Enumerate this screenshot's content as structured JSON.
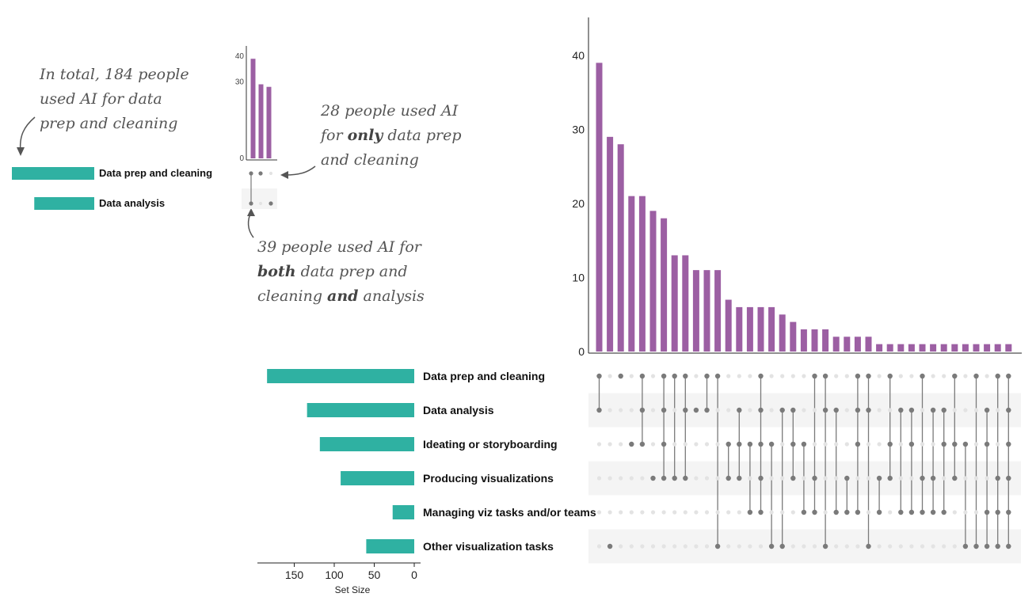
{
  "colors": {
    "intersection_bar": "#9c5fa3",
    "set_bar": "#2fb1a2",
    "dot_active": "#7a7a7a",
    "dot_inactive": "#e3e3e3",
    "stripe": "#f4f4f4",
    "annotation": "#555555"
  },
  "annotations": {
    "total": [
      "In total, 184 people",
      "used AI for data",
      "prep and cleaning"
    ],
    "only": {
      "l1": "28 people used AI",
      "l2a": "for ",
      "l2b": "only",
      "l2c": " data prep",
      "l3": "and cleaning"
    },
    "both": {
      "l1": "39 people used AI for",
      "l2a": "both",
      "l2b": " data prep and",
      "l3a": "cleaning ",
      "l3b": "and",
      "l3c": " analysis"
    }
  },
  "inset": {
    "sets": [
      "Data prep and cleaning",
      "Data analysis"
    ],
    "set_sizes": [
      184,
      134
    ],
    "y_ticks": [
      "40",
      "30",
      "0"
    ],
    "bars": [
      39,
      29,
      28
    ],
    "matrix": [
      [
        1,
        1
      ],
      [
        1,
        0
      ],
      [
        0,
        1
      ]
    ]
  },
  "chart_data": {
    "type": "bar",
    "subtype": "upset",
    "sets": [
      "Data prep and cleaning",
      "Data analysis",
      "Ideating or storyboarding",
      "Producing visualizations",
      "Managing viz tasks and/or teams",
      "Other visualization tasks"
    ],
    "set_sizes": [
      184,
      134,
      118,
      92,
      27,
      60
    ],
    "set_size_axis": {
      "label": "Set Size",
      "ticks": [
        "150",
        "100",
        "50",
        "0"
      ],
      "range": [
        200,
        0
      ]
    },
    "intersection_axis": {
      "ticks": [
        "40",
        "30",
        "20",
        "10",
        "0"
      ],
      "range": [
        0,
        45
      ]
    },
    "intersections": [
      {
        "value": 39,
        "members": [
          1,
          1,
          0,
          0,
          0,
          0
        ]
      },
      {
        "value": 29,
        "members": [
          0,
          0,
          0,
          0,
          0,
          1
        ]
      },
      {
        "value": 28,
        "members": [
          1,
          0,
          0,
          0,
          0,
          0
        ]
      },
      {
        "value": 21,
        "members": [
          0,
          0,
          1,
          0,
          0,
          0
        ]
      },
      {
        "value": 21,
        "members": [
          1,
          1,
          1,
          0,
          0,
          0
        ]
      },
      {
        "value": 19,
        "members": [
          0,
          0,
          0,
          1,
          0,
          0
        ]
      },
      {
        "value": 18,
        "members": [
          1,
          1,
          1,
          1,
          0,
          0
        ]
      },
      {
        "value": 13,
        "members": [
          1,
          0,
          0,
          1,
          0,
          0
        ]
      },
      {
        "value": 13,
        "members": [
          1,
          1,
          0,
          1,
          0,
          0
        ]
      },
      {
        "value": 11,
        "members": [
          0,
          1,
          0,
          0,
          0,
          0
        ]
      },
      {
        "value": 11,
        "members": [
          1,
          1,
          0,
          0,
          0,
          0
        ]
      },
      {
        "value": 11,
        "members": [
          1,
          0,
          0,
          0,
          0,
          1
        ]
      },
      {
        "value": 7,
        "members": [
          0,
          0,
          1,
          1,
          0,
          0
        ]
      },
      {
        "value": 6,
        "members": [
          0,
          1,
          1,
          1,
          0,
          0
        ]
      },
      {
        "value": 6,
        "members": [
          0,
          0,
          1,
          0,
          1,
          0
        ]
      },
      {
        "value": 6,
        "members": [
          1,
          1,
          1,
          1,
          1,
          0
        ]
      },
      {
        "value": 6,
        "members": [
          0,
          0,
          1,
          0,
          0,
          1
        ]
      },
      {
        "value": 5,
        "members": [
          0,
          1,
          0,
          0,
          0,
          1
        ]
      },
      {
        "value": 4,
        "members": [
          0,
          1,
          1,
          1,
          0,
          0
        ]
      },
      {
        "value": 3,
        "members": [
          0,
          0,
          1,
          0,
          1,
          0
        ]
      },
      {
        "value": 3,
        "members": [
          1,
          0,
          0,
          1,
          1,
          0
        ]
      },
      {
        "value": 3,
        "members": [
          1,
          1,
          0,
          0,
          0,
          1
        ]
      },
      {
        "value": 2,
        "members": [
          0,
          1,
          0,
          0,
          1,
          0
        ]
      },
      {
        "value": 2,
        "members": [
          0,
          0,
          0,
          1,
          1,
          0
        ]
      },
      {
        "value": 2,
        "members": [
          1,
          1,
          1,
          0,
          1,
          0
        ]
      },
      {
        "value": 2,
        "members": [
          1,
          1,
          0,
          0,
          0,
          1
        ]
      },
      {
        "value": 1,
        "members": [
          0,
          0,
          0,
          1,
          1,
          0
        ]
      },
      {
        "value": 1,
        "members": [
          1,
          0,
          1,
          1,
          0,
          0
        ]
      },
      {
        "value": 1,
        "members": [
          0,
          1,
          0,
          0,
          1,
          0
        ]
      },
      {
        "value": 1,
        "members": [
          0,
          1,
          1,
          0,
          1,
          0
        ]
      },
      {
        "value": 1,
        "members": [
          1,
          0,
          0,
          1,
          1,
          0
        ]
      },
      {
        "value": 1,
        "members": [
          0,
          1,
          0,
          1,
          1,
          0
        ]
      },
      {
        "value": 1,
        "members": [
          0,
          1,
          1,
          0,
          1,
          0
        ]
      },
      {
        "value": 1,
        "members": [
          1,
          0,
          1,
          1,
          0,
          0
        ]
      },
      {
        "value": 1,
        "members": [
          0,
          0,
          1,
          0,
          0,
          1
        ]
      },
      {
        "value": 1,
        "members": [
          1,
          0,
          0,
          0,
          0,
          1
        ]
      },
      {
        "value": 1,
        "members": [
          0,
          1,
          1,
          0,
          1,
          1
        ]
      },
      {
        "value": 1,
        "members": [
          1,
          0,
          0,
          1,
          1,
          1
        ]
      },
      {
        "value": 1,
        "members": [
          1,
          1,
          1,
          1,
          1,
          1
        ]
      }
    ]
  }
}
